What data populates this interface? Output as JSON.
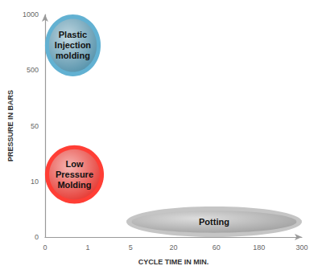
{
  "chart_data": {
    "type": "bubble",
    "x_label": "CYCLE TIME IN MIN.",
    "y_label": "PRESSURE IN BARS",
    "xlim": [
      0,
      300
    ],
    "ylim": [
      0,
      1000
    ],
    "xticks": [
      0,
      1,
      5,
      20,
      60,
      180,
      300
    ],
    "yticks": [
      0,
      10,
      50,
      500,
      1000
    ],
    "grid": false,
    "regions": [
      {
        "label": "Plastic Injection molding",
        "color": "#4f8ea8",
        "x_range": [
          0,
          2.2
        ],
        "y_range": [
          450,
          1000
        ]
      },
      {
        "label": "Low Pressure Molding",
        "color": "#e5322b",
        "x_range": [
          0,
          2.5
        ],
        "y_range": [
          6,
          36
        ]
      },
      {
        "label": "Potting",
        "color": "#9e9e9e",
        "x_range": [
          4.6,
          300
        ],
        "y_range": [
          0,
          5.5
        ]
      }
    ]
  }
}
